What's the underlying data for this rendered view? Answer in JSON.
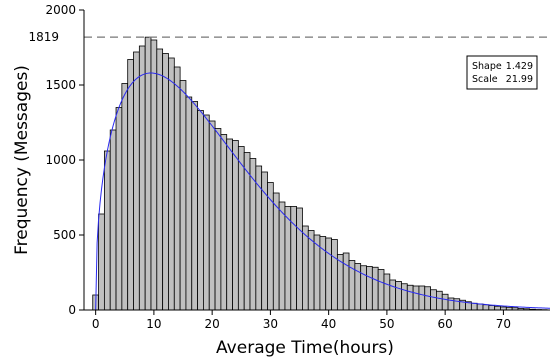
{
  "chart_data": {
    "type": "bar",
    "title": "",
    "xlabel": "Average Time(hours)",
    "ylabel": "Frequency (Messages)",
    "xlim": [
      -2,
      78
    ],
    "ylim": [
      0,
      2000
    ],
    "x_ticks": [
      0,
      10,
      20,
      30,
      40,
      50,
      60,
      70
    ],
    "y_ticks": [
      0,
      500,
      1000,
      1500,
      2000
    ],
    "bin_width": 1,
    "bar_color": "#c0c0c0",
    "bar_edge_color": "#000000",
    "x": [
      0,
      1,
      2,
      3,
      4,
      5,
      6,
      7,
      8,
      9,
      10,
      11,
      12,
      13,
      14,
      15,
      16,
      17,
      18,
      19,
      20,
      21,
      22,
      23,
      24,
      25,
      26,
      27,
      28,
      29,
      30,
      31,
      32,
      33,
      34,
      35,
      36,
      37,
      38,
      39,
      40,
      41,
      42,
      43,
      44,
      45,
      46,
      47,
      48,
      49,
      50,
      51,
      52,
      53,
      54,
      55,
      56,
      57,
      58,
      59,
      60,
      61,
      62,
      63,
      64,
      65,
      66,
      67,
      68,
      69,
      70,
      71,
      72,
      73,
      74,
      75,
      76,
      77
    ],
    "values": [
      100,
      640,
      1060,
      1200,
      1350,
      1510,
      1670,
      1720,
      1760,
      1819,
      1800,
      1740,
      1710,
      1680,
      1620,
      1530,
      1420,
      1390,
      1330,
      1300,
      1260,
      1210,
      1170,
      1140,
      1130,
      1090,
      1050,
      1010,
      960,
      920,
      850,
      780,
      720,
      690,
      690,
      680,
      560,
      530,
      500,
      490,
      480,
      470,
      370,
      380,
      330,
      310,
      295,
      290,
      285,
      270,
      240,
      200,
      190,
      175,
      165,
      160,
      160,
      155,
      135,
      125,
      105,
      80,
      75,
      65,
      55,
      45,
      40,
      35,
      30,
      25,
      20,
      18,
      15,
      10,
      8,
      5,
      3,
      2
    ],
    "fit": {
      "name": "Weibull",
      "color": "#2a2af0",
      "shape": 1.429,
      "scale": 21.99,
      "peak_value": 1580
    },
    "legend": {
      "placement": "top-right",
      "rows": [
        {
          "label": "Shape",
          "value": "1.429"
        },
        {
          "label": "Scale",
          "value": "21.99"
        }
      ]
    },
    "reference_line": {
      "value": 1819,
      "label": "1819",
      "style": "dashed",
      "color": "#777777"
    },
    "grid": false
  }
}
